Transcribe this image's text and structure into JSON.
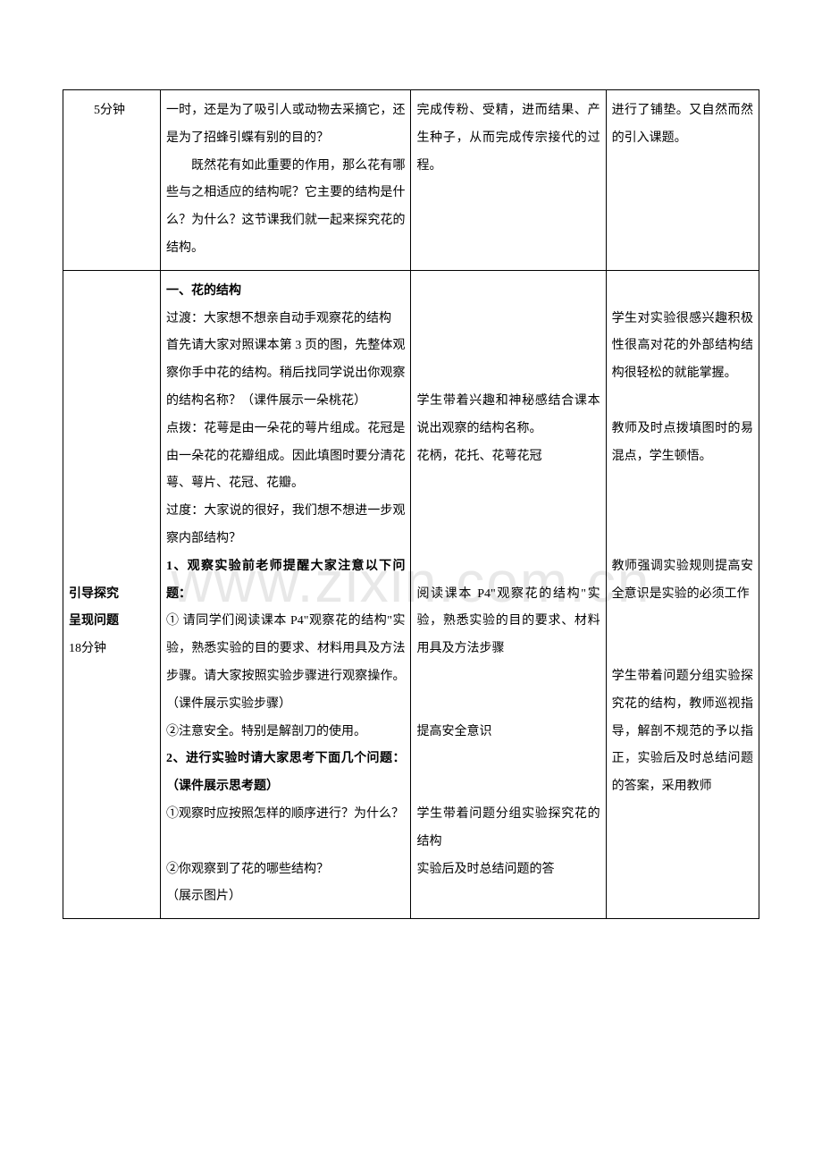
{
  "watermark": "www.zixin.com.cn",
  "table": {
    "border_color": "#000000",
    "background_color": "#ffffff",
    "font_size": 14,
    "line_height": 2.2,
    "columns": [
      {
        "width": "14%"
      },
      {
        "width": "36%"
      },
      {
        "width": "28%"
      },
      {
        "width": "22%"
      }
    ],
    "rows": [
      {
        "cells": [
          {
            "content": [
              {
                "text": "5分钟",
                "indent": true
              }
            ]
          },
          {
            "content": [
              {
                "text": "一时，还是为了吸引人或动物去采摘它，还是为了招蜂引蝶有别的目的？"
              },
              {
                "text": "既然花有如此重要的作用，那么花有哪些与之相适应的结构呢？它主要的结构是什么？为什么？这节课我们就一起来探究花的结构。",
                "indent": true
              }
            ]
          },
          {
            "content": [
              {
                "text": "完成传粉、受精，进而结果、产生种子，从而完成传宗接代的过程。"
              }
            ]
          },
          {
            "content": [
              {
                "text": "进行了铺垫。又自然而然的引入课题。"
              }
            ]
          }
        ]
      },
      {
        "cells": [
          {
            "content": [
              {
                "text": ""
              },
              {
                "text": ""
              },
              {
                "text": ""
              },
              {
                "text": ""
              },
              {
                "text": ""
              },
              {
                "text": ""
              },
              {
                "text": ""
              },
              {
                "text": ""
              },
              {
                "text": ""
              },
              {
                "text": ""
              },
              {
                "text": ""
              },
              {
                "text": "引导探究",
                "bold": true
              },
              {
                "text": "呈现问题",
                "bold": true
              },
              {
                "text": "18分钟"
              }
            ]
          },
          {
            "content": [
              {
                "text": "一、花的结构",
                "bold": true
              },
              {
                "text": "过渡：大家想不想亲自动手观察花的结构"
              },
              {
                "text": "首先请大家对照课本第 3 页的图，先整体观察你手中花的结构。稍后找同学说出你观察的结构名称？（课件展示一朵桃花）"
              },
              {
                "text": "点拨：花萼是由一朵花的萼片组成。花冠是由一朵花的花瓣组成。因此填图时要分清花萼、萼片、花冠、花瓣。"
              },
              {
                "text": "过度：大家说的很好，我们想不想进一步观察内部结构？"
              },
              {
                "text": "1、观察实验前老师提醒大家注意以下问题：",
                "bold": true
              },
              {
                "text": "① 请同学们阅读课本 P4\"观察花的结构\"实验，熟悉实验的目的要求、材料用具及方法步骤。请大家按照实验步骤进行观察操作。（课件展示实验步骤）"
              },
              {
                "text": "②注意安全。特别是解剖刀的使用。"
              },
              {
                "text": "2、进行实验时请大家思考下面几个问题：（课件展示思考题）",
                "bold": true
              },
              {
                "text": "①观察时应按照怎样的顺序进行？为什么？"
              },
              {
                "text": ""
              },
              {
                "text": "②你观察到了花的哪些结构？"
              },
              {
                "text": "（展示图片）"
              }
            ]
          },
          {
            "content": [
              {
                "text": ""
              },
              {
                "text": ""
              },
              {
                "text": ""
              },
              {
                "text": ""
              },
              {
                "text": "学生带着兴趣和神秘感结合课本说出观察的结构名称。"
              },
              {
                "text": "花柄，花托、花萼花冠"
              },
              {
                "text": ""
              },
              {
                "text": ""
              },
              {
                "text": ""
              },
              {
                "text": ""
              },
              {
                "text": "阅读课本 P4\"观察花的结构\"实验，熟悉实验的目的要求、材料用具及方法步骤"
              },
              {
                "text": ""
              },
              {
                "text": ""
              },
              {
                "text": "提高安全意识"
              },
              {
                "text": ""
              },
              {
                "text": ""
              },
              {
                "text": "学生带着问题分组实验探究花的结构"
              },
              {
                "text": "实验后及时总结问题的答"
              }
            ]
          },
          {
            "content": [
              {
                "text": ""
              },
              {
                "text": "学生对实验很感兴趣积极性很高对花的外部结构结构很轻松的就能掌握。"
              },
              {
                "text": ""
              },
              {
                "text": "教师及时点拨填图时的易混点，学生顿悟。"
              },
              {
                "text": ""
              },
              {
                "text": ""
              },
              {
                "text": ""
              },
              {
                "text": "教师强调实验规则提高安全意识是实验的必须工作"
              },
              {
                "text": ""
              },
              {
                "text": ""
              },
              {
                "text": "学生带着问题分组实验探究花的结构，教师巡视指导，解剖不规范的予以指正，实验后及时总结问题的答案，采用教师"
              }
            ]
          }
        ]
      }
    ]
  }
}
